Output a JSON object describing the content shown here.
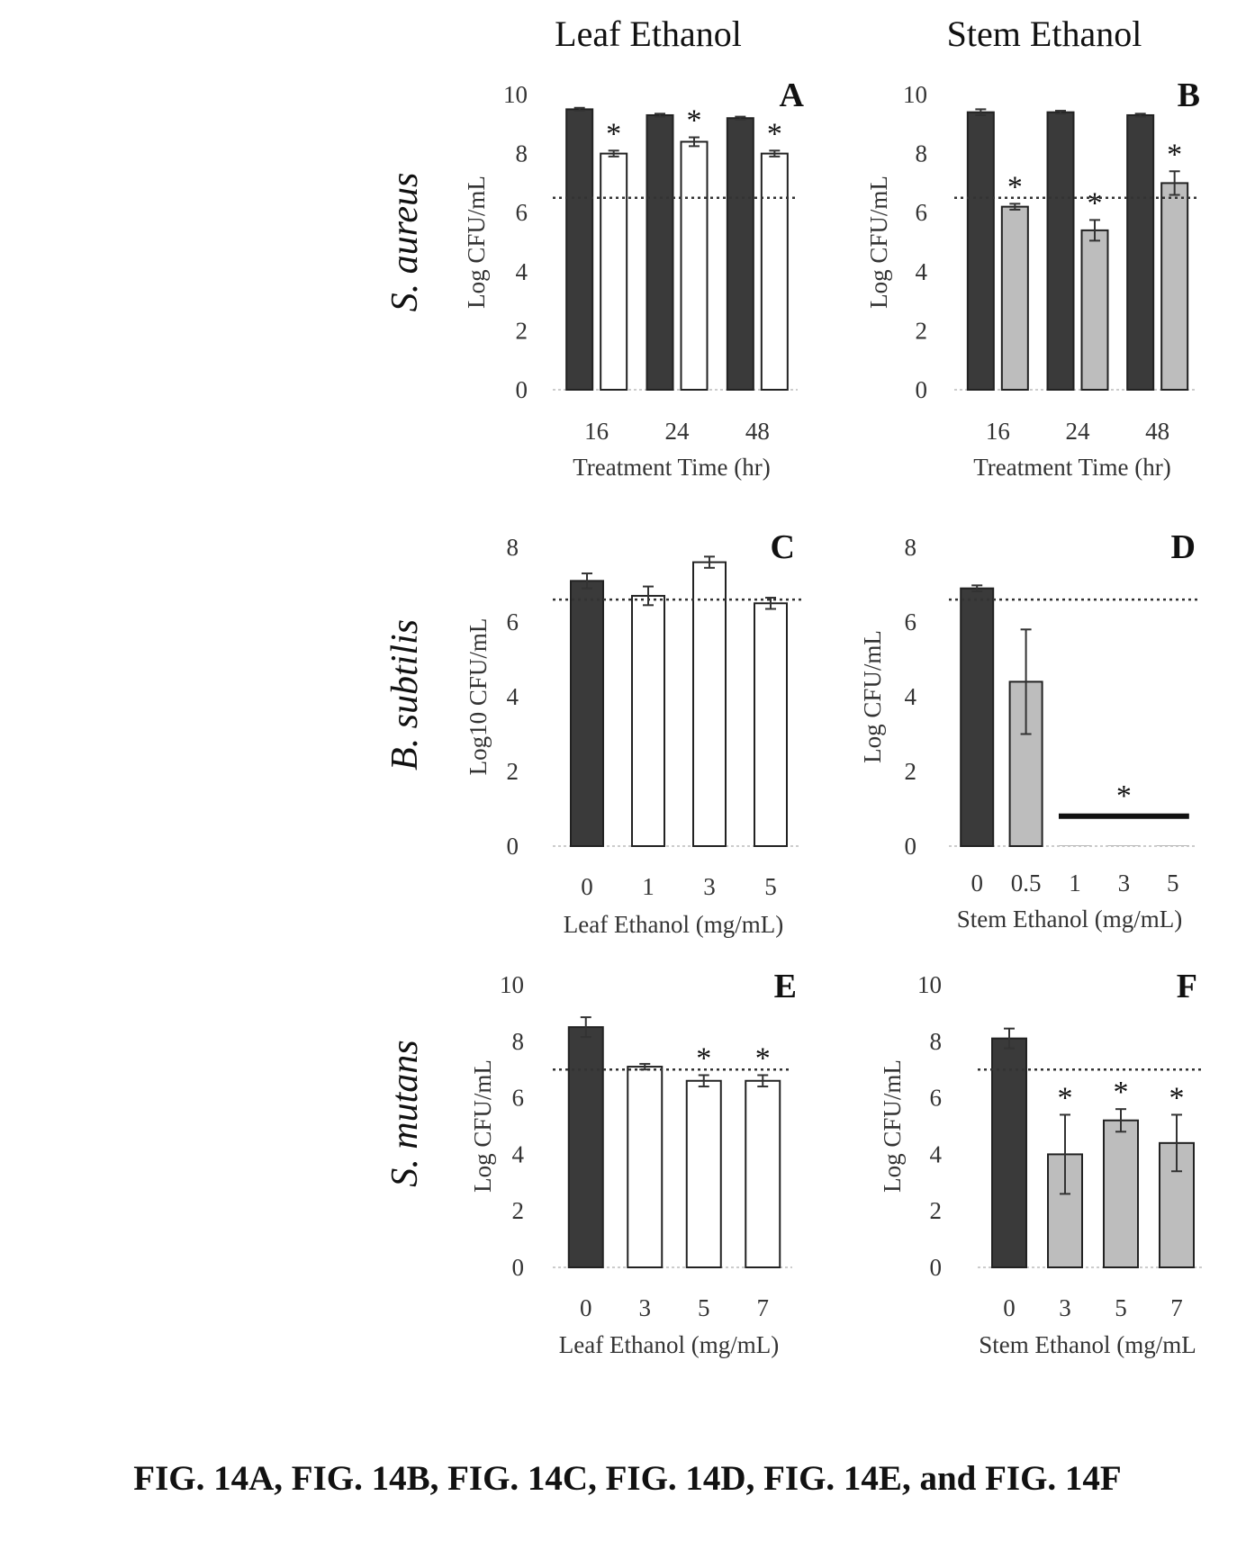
{
  "column_titles": [
    "Leaf Ethanol",
    "Stem Ethanol"
  ],
  "row_labels": [
    "S. aureus",
    "B. subtilis",
    "S. mutans"
  ],
  "caption": "FIG. 14A, FIG. 14B, FIG. 14C, FIG. 14D, FIG. 14E, and FIG. 14F",
  "colors": {
    "control": "#3a3a3a",
    "leaf": "#ffffff",
    "stem": "#bdbdbd",
    "outline": "#222222"
  },
  "chart_data": [
    {
      "panel": "A",
      "type": "bar",
      "categories": [
        "16",
        "24",
        "48"
      ],
      "xlabel": "Treatment Time (hr)",
      "ylabel": "Log CFU/mL",
      "ylim": [
        0,
        10
      ],
      "yticks": [
        0,
        2,
        4,
        6,
        8,
        10
      ],
      "threshold": 6.5,
      "series": [
        {
          "values": [
            9.5,
            9.3,
            9.2
          ],
          "errors": [
            0.05,
            0.05,
            0.05
          ],
          "fill": "control",
          "stars": [
            false,
            false,
            false
          ]
        },
        {
          "values": [
            8.0,
            8.4,
            8.0
          ],
          "errors": [
            0.1,
            0.15,
            0.1
          ],
          "fill": "leaf",
          "stars": [
            true,
            true,
            true
          ]
        }
      ]
    },
    {
      "panel": "B",
      "type": "bar",
      "categories": [
        "16",
        "24",
        "48"
      ],
      "xlabel": "Treatment Time (hr)",
      "ylabel": "Log CFU/mL",
      "ylim": [
        0,
        10
      ],
      "yticks": [
        0,
        2,
        4,
        6,
        8,
        10
      ],
      "threshold": 6.5,
      "series": [
        {
          "values": [
            9.4,
            9.4,
            9.3
          ],
          "errors": [
            0.1,
            0.05,
            0.05
          ],
          "fill": "control",
          "stars": [
            false,
            false,
            false
          ]
        },
        {
          "values": [
            6.2,
            5.4,
            7.0
          ],
          "errors": [
            0.1,
            0.35,
            0.4
          ],
          "fill": "stem",
          "stars": [
            true,
            true,
            true
          ]
        }
      ]
    },
    {
      "panel": "C",
      "type": "bar",
      "categories": [
        "0",
        "1",
        "3",
        "5"
      ],
      "xlabel": "Leaf Ethanol (mg/mL)",
      "ylabel": "Log10 CFU/mL",
      "ylim": [
        0,
        8
      ],
      "yticks": [
        0,
        2,
        4,
        6,
        8
      ],
      "threshold": 6.6,
      "bars": [
        {
          "value": 7.1,
          "error": 0.2,
          "fill": "control",
          "star": false
        },
        {
          "value": 6.7,
          "error": 0.25,
          "fill": "leaf",
          "star": false
        },
        {
          "value": 7.6,
          "error": 0.15,
          "fill": "leaf",
          "star": false
        },
        {
          "value": 6.5,
          "error": 0.15,
          "fill": "leaf",
          "star": false
        }
      ]
    },
    {
      "panel": "D",
      "type": "bar",
      "categories": [
        "0",
        "0.5",
        "1",
        "3",
        "5"
      ],
      "xlabel": "Stem Ethanol (mg/mL)",
      "ylabel": "Log CFU/mL",
      "ylim": [
        0,
        8
      ],
      "yticks": [
        0,
        2,
        4,
        6,
        8
      ],
      "threshold": 6.6,
      "bars": [
        {
          "value": 6.9,
          "error": 0.08,
          "fill": "control",
          "star": false
        },
        {
          "value": 4.4,
          "error": 1.4,
          "fill": "stem",
          "star": false
        },
        {
          "value": 0,
          "error": 0,
          "fill": "stem",
          "star": false
        },
        {
          "value": 0,
          "error": 0,
          "fill": "stem",
          "star": false
        },
        {
          "value": 0,
          "error": 0,
          "fill": "stem",
          "star": false
        }
      ],
      "star_bar": {
        "from": 2,
        "to": 4,
        "value": 0.8
      }
    },
    {
      "panel": "E",
      "type": "bar",
      "categories": [
        "0",
        "3",
        "5",
        "7"
      ],
      "xlabel": "Leaf Ethanol (mg/mL)",
      "ylabel": "Log CFU/mL",
      "ylim": [
        0,
        10
      ],
      "yticks": [
        0,
        2,
        4,
        6,
        8,
        10
      ],
      "threshold": 7.0,
      "bars": [
        {
          "value": 8.5,
          "error": 0.35,
          "fill": "control",
          "star": false
        },
        {
          "value": 7.1,
          "error": 0.1,
          "fill": "leaf",
          "star": false
        },
        {
          "value": 6.6,
          "error": 0.2,
          "fill": "leaf",
          "star": true
        },
        {
          "value": 6.6,
          "error": 0.2,
          "fill": "leaf",
          "star": true
        }
      ]
    },
    {
      "panel": "F",
      "type": "bar",
      "categories": [
        "0",
        "3",
        "5",
        "7"
      ],
      "xlabel": "Stem Ethanol (mg/mL",
      "ylabel": "Log CFU/mL",
      "ylim": [
        0,
        10
      ],
      "yticks": [
        0,
        2,
        4,
        6,
        8,
        10
      ],
      "threshold": 7.0,
      "bars": [
        {
          "value": 8.1,
          "error": 0.35,
          "fill": "control",
          "star": false
        },
        {
          "value": 4.0,
          "error": 1.4,
          "fill": "stem",
          "star": true
        },
        {
          "value": 5.2,
          "error": 0.4,
          "fill": "stem",
          "star": true
        },
        {
          "value": 4.4,
          "error": 1.0,
          "fill": "stem",
          "star": true
        }
      ]
    }
  ]
}
